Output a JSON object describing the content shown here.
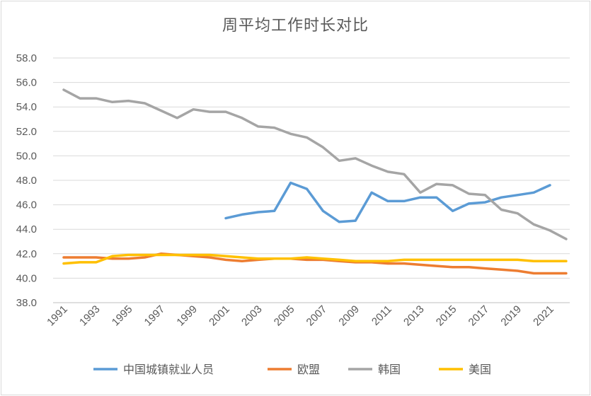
{
  "chart_data": {
    "type": "line",
    "title": "周平均工作时长对比",
    "xlabel": "",
    "ylabel": "",
    "x": [
      1991,
      1992,
      1993,
      1994,
      1995,
      1996,
      1997,
      1998,
      1999,
      2000,
      2001,
      2002,
      2003,
      2004,
      2005,
      2006,
      2007,
      2008,
      2009,
      2010,
      2011,
      2012,
      2013,
      2014,
      2015,
      2016,
      2017,
      2018,
      2019,
      2020,
      2021,
      2022
    ],
    "x_tick_labels": [
      "1991",
      "1993",
      "1995",
      "1997",
      "1999",
      "2001",
      "2003",
      "2005",
      "2007",
      "2009",
      "2011",
      "2013",
      "2015",
      "2017",
      "2019",
      "2021"
    ],
    "ylim": [
      38.0,
      58.0
    ],
    "y_ticks": [
      "38.0",
      "40.0",
      "42.0",
      "44.0",
      "46.0",
      "48.0",
      "50.0",
      "52.0",
      "54.0",
      "56.0",
      "58.0"
    ],
    "grid": true,
    "legend_position": "bottom",
    "series": [
      {
        "name": "中国城镇就业人员",
        "color": "#5b9bd5",
        "values": [
          null,
          null,
          null,
          null,
          null,
          null,
          null,
          null,
          null,
          null,
          44.9,
          45.2,
          45.4,
          45.5,
          47.8,
          47.3,
          45.5,
          44.6,
          44.7,
          47.0,
          46.3,
          46.3,
          46.6,
          46.6,
          45.5,
          46.1,
          46.2,
          46.6,
          46.8,
          47.0,
          47.6,
          null
        ]
      },
      {
        "name": "欧盟",
        "color": "#ed7d31",
        "values": [
          41.7,
          41.7,
          41.7,
          41.6,
          41.6,
          41.7,
          42.0,
          41.9,
          41.8,
          41.7,
          41.5,
          41.4,
          41.5,
          41.6,
          41.6,
          41.5,
          41.5,
          41.4,
          41.3,
          41.3,
          41.2,
          41.2,
          41.1,
          41.0,
          40.9,
          40.9,
          40.8,
          40.7,
          40.6,
          40.4,
          40.4,
          40.4
        ]
      },
      {
        "name": "韩国",
        "color": "#a5a5a5",
        "values": [
          55.4,
          54.7,
          54.7,
          54.4,
          54.5,
          54.3,
          53.7,
          53.1,
          53.8,
          53.6,
          53.6,
          53.1,
          52.4,
          52.3,
          51.8,
          51.5,
          50.7,
          49.6,
          49.8,
          49.2,
          48.7,
          48.5,
          47.0,
          47.7,
          47.6,
          46.9,
          46.8,
          45.6,
          45.3,
          44.4,
          43.9,
          43.2
        ]
      },
      {
        "name": "美国",
        "color": "#ffc000",
        "values": [
          41.2,
          41.3,
          41.3,
          41.8,
          41.9,
          41.9,
          41.9,
          41.9,
          41.9,
          41.9,
          41.8,
          41.7,
          41.6,
          41.6,
          41.6,
          41.7,
          41.6,
          41.5,
          41.4,
          41.4,
          41.4,
          41.5,
          41.5,
          41.5,
          41.5,
          41.5,
          41.5,
          41.5,
          41.5,
          41.4,
          41.4,
          41.4
        ]
      }
    ]
  }
}
